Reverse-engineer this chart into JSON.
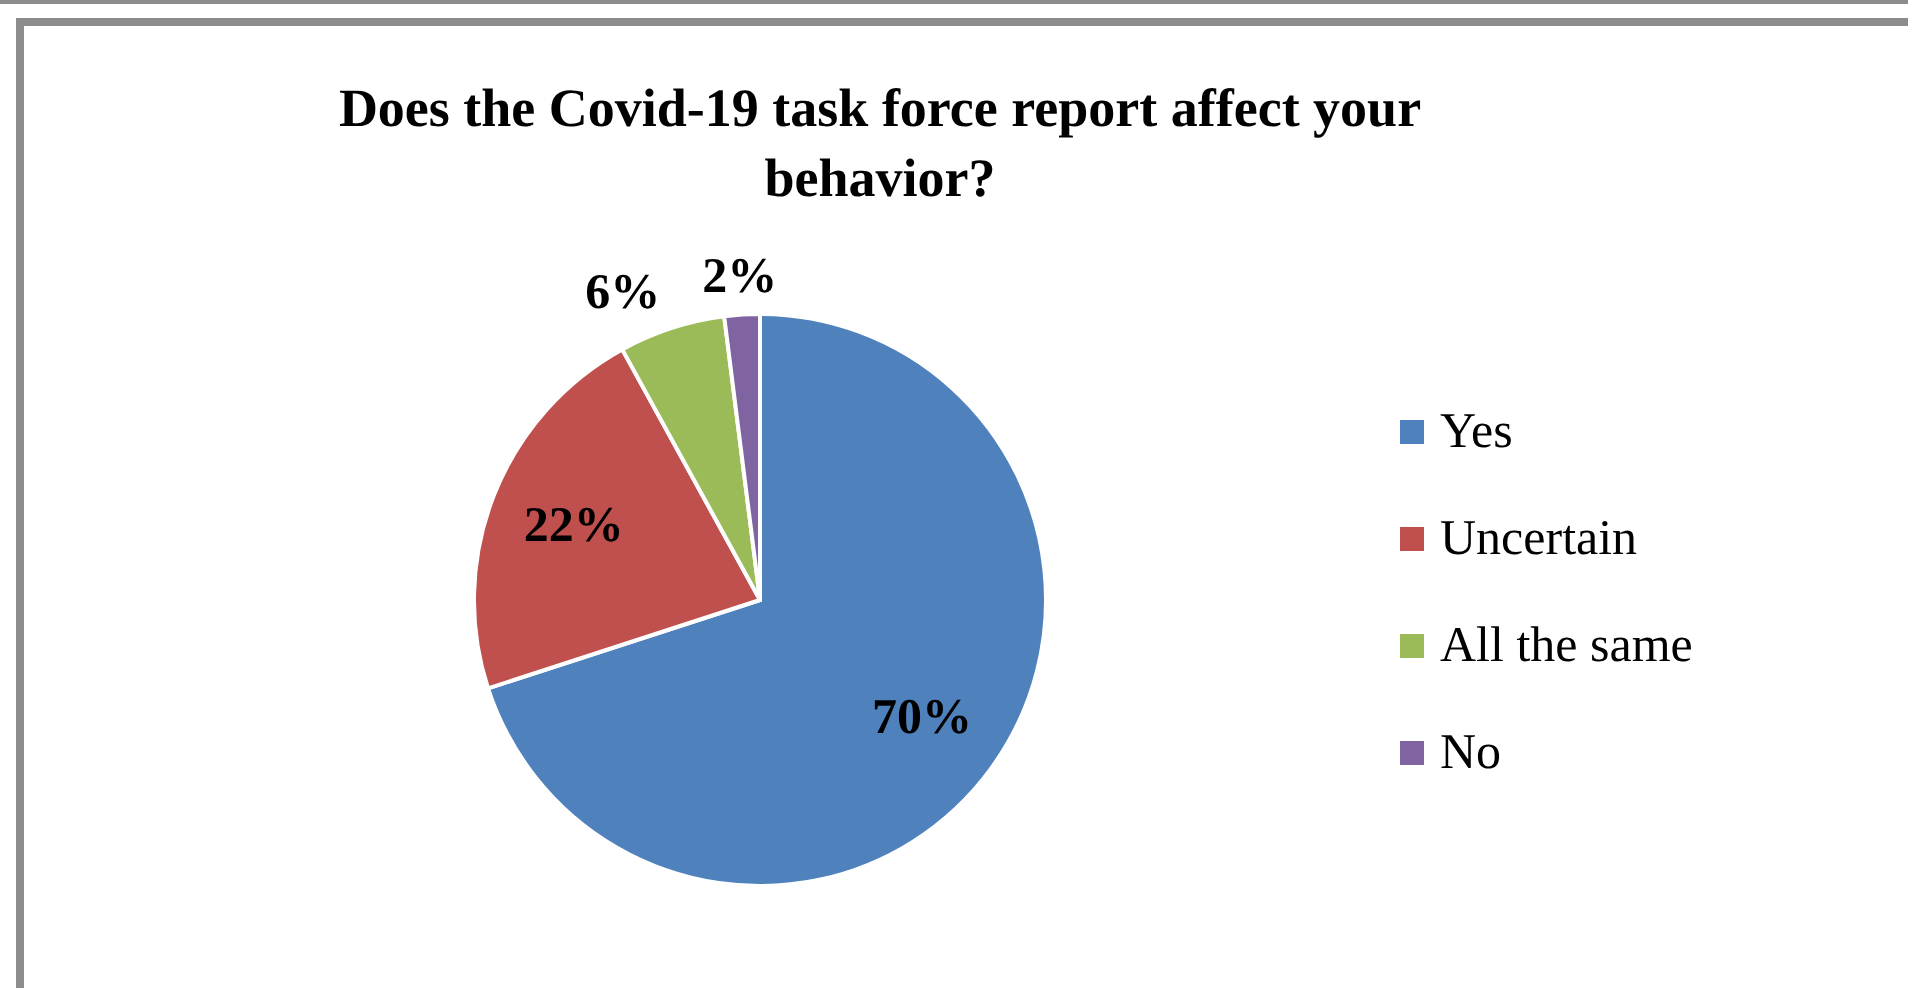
{
  "chart_data": {
    "type": "pie",
    "title": "Does the Covid-19 task force report affect your behavior?",
    "categories": [
      "Yes",
      "Uncertain",
      "All the same",
      "No"
    ],
    "values": [
      70,
      22,
      6,
      2
    ],
    "colors": [
      "#4f81bd",
      "#c0504d",
      "#9bbb59",
      "#8064a2"
    ],
    "value_labels": [
      "70%",
      "22%",
      "6%",
      "2%"
    ],
    "legend": "right"
  }
}
